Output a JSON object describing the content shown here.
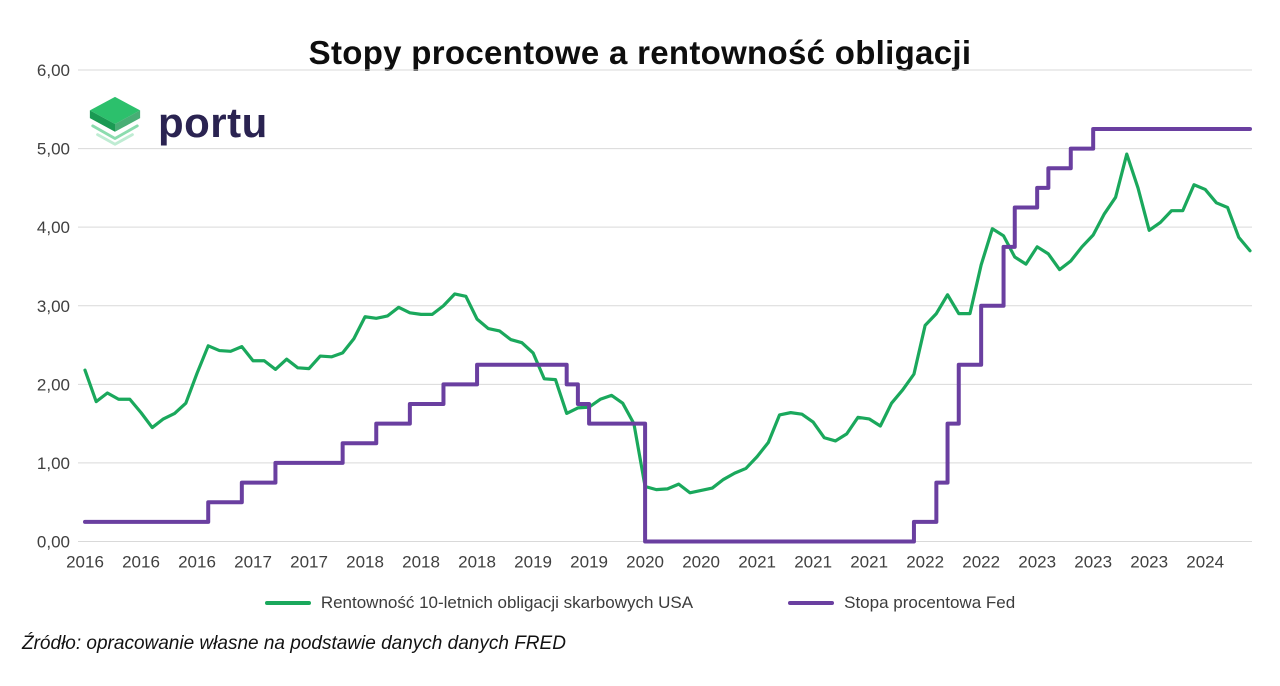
{
  "title": "Stopy procentowe a rentowność obligacji",
  "logo": {
    "text": "portu"
  },
  "source_note": "Źródło: opracowanie własne na podstawie danych danych FRED",
  "colors": {
    "bond": "#1aa85c",
    "fed": "#6a3fa0",
    "grid": "#d9d9d9",
    "axis_text": "#404040",
    "title_text": "#0e0e0e",
    "logo_text": "#2a2351",
    "logo_green": "#2cc06c",
    "logo_green_dark": "#1a9a53"
  },
  "chart_data": {
    "type": "line",
    "title": "Stopy procentowe a rentowność obligacji",
    "x_start_year": 2016,
    "x_frequency": "monthly",
    "ylim": [
      0,
      6
    ],
    "grid": "horizontal",
    "legend_position": "bottom",
    "y_tick_labels": [
      "0,00",
      "1,00",
      "2,00",
      "3,00",
      "4,00",
      "5,00",
      "6,00"
    ],
    "x_tick_month_step": 5,
    "x_tick_labels": [
      "2016",
      "2016",
      "2016",
      "2017",
      "2017",
      "2018",
      "2018",
      "2018",
      "2019",
      "2019",
      "2020",
      "2020",
      "2021",
      "2021",
      "2021",
      "2022",
      "2022",
      "2023",
      "2023",
      "2023",
      "2024"
    ],
    "series": [
      {
        "name": "Rentowność 10-letnich obligacji skarbowych USA",
        "color": "#1aa85c",
        "style": "line",
        "values": [
          2.18,
          1.78,
          1.89,
          1.81,
          1.81,
          1.64,
          1.45,
          1.56,
          1.63,
          1.76,
          2.14,
          2.49,
          2.43,
          2.42,
          2.48,
          2.3,
          2.3,
          2.19,
          2.32,
          2.21,
          2.2,
          2.36,
          2.35,
          2.4,
          2.58,
          2.86,
          2.84,
          2.87,
          2.98,
          2.91,
          2.89,
          2.89,
          3.0,
          3.15,
          3.12,
          2.83,
          2.71,
          2.68,
          2.57,
          2.53,
          2.4,
          2.07,
          2.06,
          1.63,
          1.7,
          1.71,
          1.81,
          1.86,
          1.76,
          1.5,
          0.7,
          0.66,
          0.67,
          0.73,
          0.62,
          0.65,
          0.68,
          0.79,
          0.87,
          0.93,
          1.08,
          1.26,
          1.61,
          1.64,
          1.62,
          1.52,
          1.32,
          1.28,
          1.37,
          1.58,
          1.56,
          1.47,
          1.76,
          1.93,
          2.13,
          2.75,
          2.9,
          3.14,
          2.9,
          2.9,
          3.52,
          3.98,
          3.89,
          3.62,
          3.53,
          3.75,
          3.66,
          3.46,
          3.57,
          3.75,
          3.9,
          4.17,
          4.38,
          4.93,
          4.5,
          3.96,
          4.06,
          4.21,
          4.21,
          4.54,
          4.48,
          4.31,
          4.25,
          3.87,
          3.7
        ]
      },
      {
        "name": "Stopa procentowa Fed",
        "color": "#6a3fa0",
        "style": "step",
        "values": [
          0.25,
          0.25,
          0.25,
          0.25,
          0.25,
          0.25,
          0.25,
          0.25,
          0.25,
          0.25,
          0.25,
          0.5,
          0.5,
          0.5,
          0.75,
          0.75,
          0.75,
          1.0,
          1.0,
          1.0,
          1.0,
          1.0,
          1.0,
          1.25,
          1.25,
          1.25,
          1.5,
          1.5,
          1.5,
          1.75,
          1.75,
          1.75,
          2.0,
          2.0,
          2.0,
          2.25,
          2.25,
          2.25,
          2.25,
          2.25,
          2.25,
          2.25,
          2.25,
          2.0,
          1.75,
          1.5,
          1.5,
          1.5,
          1.5,
          1.5,
          0.0,
          0.0,
          0.0,
          0.0,
          0.0,
          0.0,
          0.0,
          0.0,
          0.0,
          0.0,
          0.0,
          0.0,
          0.0,
          0.0,
          0.0,
          0.0,
          0.0,
          0.0,
          0.0,
          0.0,
          0.0,
          0.0,
          0.0,
          0.0,
          0.25,
          0.25,
          0.75,
          1.5,
          2.25,
          2.25,
          3.0,
          3.0,
          3.75,
          4.25,
          4.25,
          4.5,
          4.75,
          4.75,
          5.0,
          5.0,
          5.25,
          5.25,
          5.25,
          5.25,
          5.25,
          5.25,
          5.25,
          5.25,
          5.25,
          5.25,
          5.25,
          5.25,
          5.25,
          5.25,
          5.25
        ]
      }
    ]
  }
}
